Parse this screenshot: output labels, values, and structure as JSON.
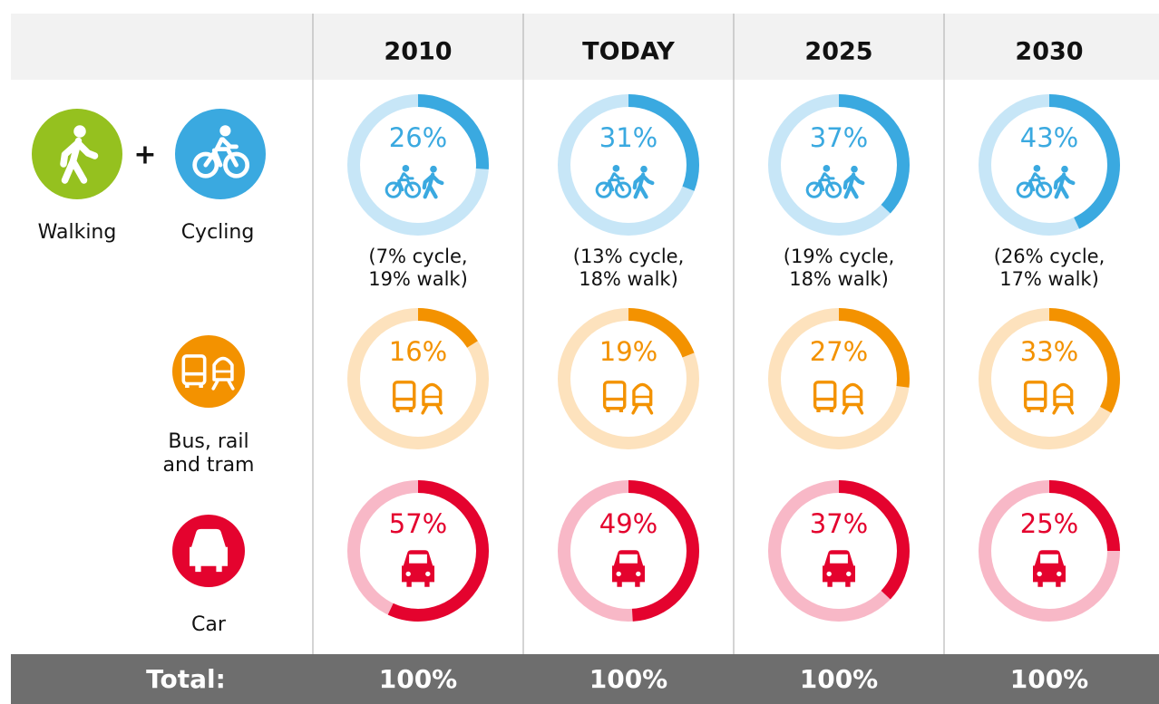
{
  "chart_data": {
    "type": "donut",
    "columns": [
      "2010",
      "TODAY",
      "2025",
      "2030"
    ],
    "ylim": [
      0,
      100
    ],
    "series": [
      {
        "labels": [
          "Walking",
          "Cycling"
        ],
        "icon": "walkcycle",
        "color": "#3aa9e0",
        "track": "#c7e6f7",
        "values": [
          26,
          31,
          37,
          43
        ],
        "value_labels": [
          "26%",
          "31%",
          "37%",
          "43%"
        ],
        "details": [
          [
            "(7% cycle,",
            "19% walk)"
          ],
          [
            "(13% cycle,",
            "18% walk)"
          ],
          [
            "(19% cycle,",
            "18% walk)"
          ],
          [
            "(26% cycle,",
            "17% walk)"
          ]
        ]
      },
      {
        "labels": [
          "Bus, rail",
          "and tram"
        ],
        "icon": "bustrain",
        "color": "#f39200",
        "track": "#fde2bd",
        "values": [
          16,
          19,
          27,
          33
        ],
        "value_labels": [
          "16%",
          "19%",
          "27%",
          "33%"
        ]
      },
      {
        "labels": [
          "Car"
        ],
        "icon": "car",
        "color": "#e4032e",
        "track": "#f8b8c7",
        "values": [
          57,
          49,
          37,
          25
        ],
        "value_labels": [
          "57%",
          "49%",
          "37%",
          "25%"
        ]
      }
    ],
    "total_label": "Total:",
    "total_labels": [
      "100%",
      "100%",
      "100%",
      "100%"
    ]
  }
}
